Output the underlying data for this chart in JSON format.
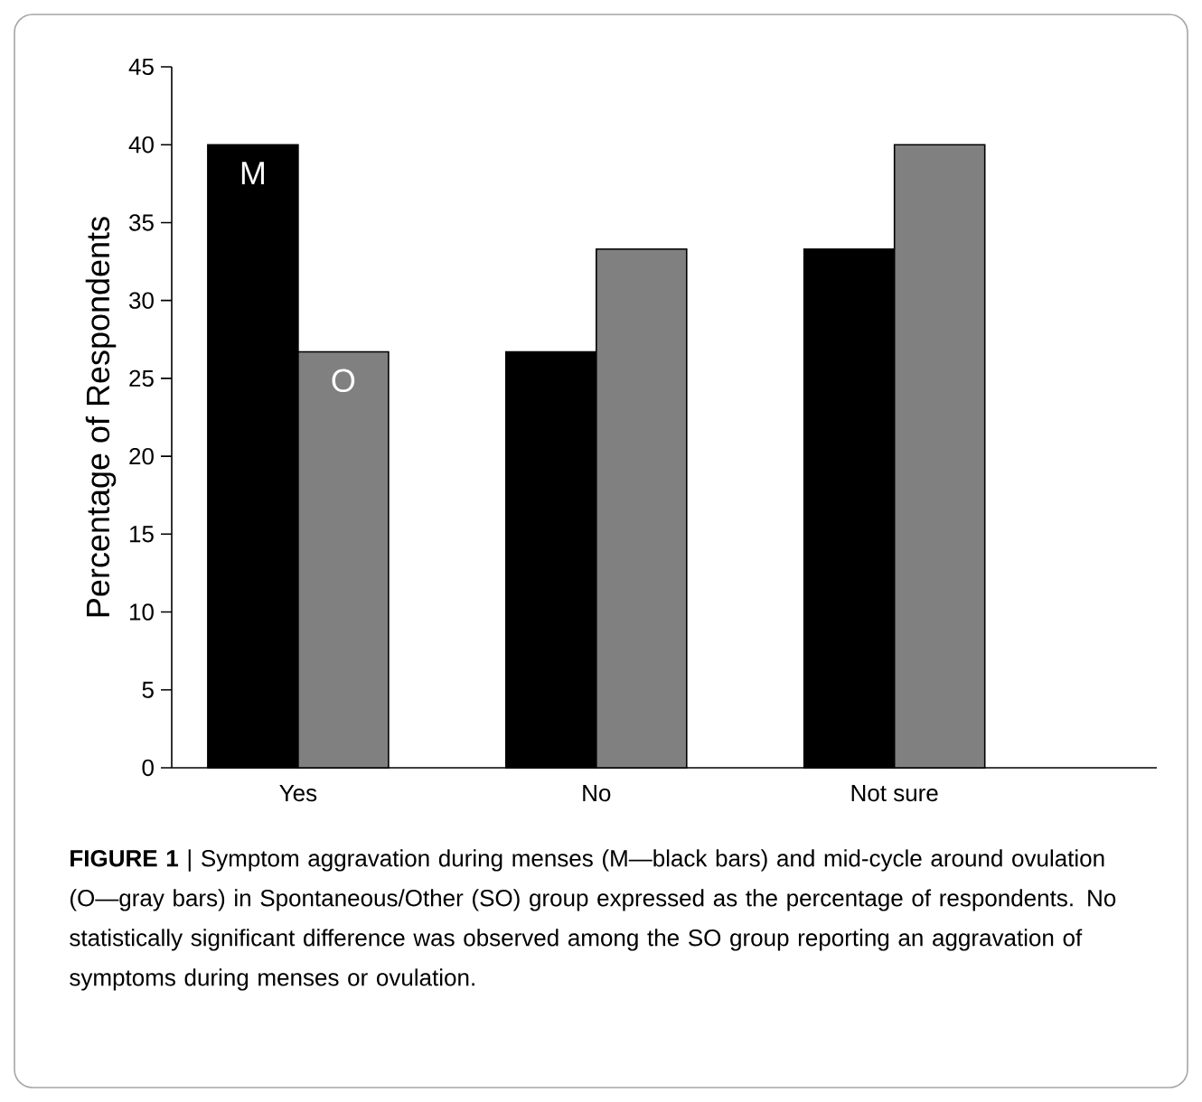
{
  "chart_data": {
    "type": "bar",
    "ylabel": "Percentage of Respondents",
    "categories": [
      "Yes",
      "No",
      "Not sure"
    ],
    "series": [
      {
        "name": "M",
        "color": "#000000",
        "values": [
          40,
          26.7,
          33.3
        ]
      },
      {
        "name": "O",
        "color": "#808080",
        "values": [
          26.7,
          33.3,
          40
        ]
      }
    ],
    "ylim": [
      0,
      45
    ],
    "yticks": [
      0,
      5,
      10,
      15,
      20,
      25,
      30,
      35,
      40,
      45
    ],
    "legend": false,
    "grid": false,
    "annotations": [
      "**FIGURE 1** | Symptom aggravation during menses (M—black bars) and mid-cycle around ovulation (O—gray bars) in Spontaneous/Other (SO) group expressed as the percentage of respondents. No statistically significant difference was observed among the SO group reporting an aggravation of symptoms during menses or ovulation."
    ]
  }
}
